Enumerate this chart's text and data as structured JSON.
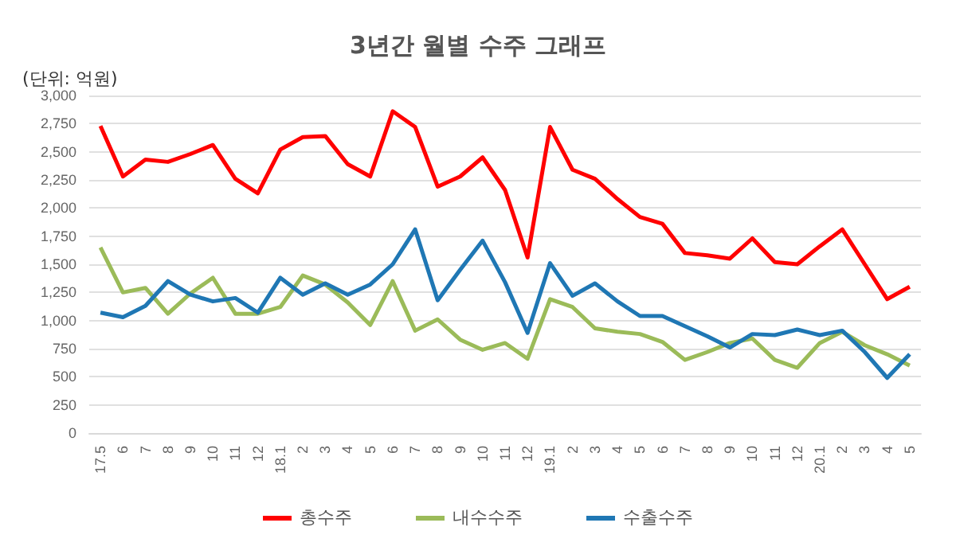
{
  "chart_data": {
    "type": "line",
    "title": "3년간 월별 수주 그래프",
    "ylabel": "(단위: 억원)",
    "categories": [
      "17.5",
      "6",
      "7",
      "8",
      "9",
      "10",
      "11",
      "12",
      "18.1",
      "2",
      "3",
      "4",
      "5",
      "6",
      "7",
      "8",
      "9",
      "10",
      "11",
      "12",
      "19.1",
      "2",
      "3",
      "4",
      "5",
      "6",
      "7",
      "8",
      "9",
      "10",
      "11",
      "12",
      "20.1",
      "2",
      "3",
      "4",
      "5"
    ],
    "series": [
      {
        "name": "총수주",
        "color": "#ff0000",
        "values": [
          2730,
          2280,
          2430,
          2410,
          2480,
          2560,
          2260,
          2130,
          2520,
          2630,
          2640,
          2390,
          2280,
          2860,
          2720,
          2190,
          2280,
          2450,
          2160,
          1560,
          2720,
          2340,
          2260,
          2080,
          1920,
          1860,
          1600,
          1580,
          1550,
          1730,
          1520,
          1500,
          1660,
          1810,
          1500,
          1190,
          1300
        ]
      },
      {
        "name": "내수수주",
        "color": "#9bbb59",
        "values": [
          1650,
          1250,
          1290,
          1060,
          1240,
          1380,
          1060,
          1060,
          1120,
          1400,
          1320,
          1160,
          960,
          1350,
          910,
          1010,
          830,
          740,
          800,
          660,
          1190,
          1120,
          930,
          900,
          880,
          810,
          650,
          720,
          800,
          840,
          650,
          580,
          800,
          900,
          780,
          700,
          600
        ]
      },
      {
        "name": "수출수주",
        "color": "#1f77b4",
        "values": [
          1070,
          1030,
          1130,
          1350,
          1230,
          1170,
          1200,
          1070,
          1380,
          1230,
          1330,
          1230,
          1320,
          1500,
          1810,
          1180,
          1450,
          1710,
          1340,
          890,
          1510,
          1220,
          1330,
          1170,
          1040,
          1040,
          950,
          860,
          760,
          880,
          870,
          920,
          870,
          910,
          720,
          490,
          700
        ]
      }
    ],
    "ylim": [
      0,
      3000
    ],
    "yticks": [
      0,
      250,
      500,
      750,
      {
        "value": 1000,
        "label": "1,000"
      },
      {
        "value": 1250,
        "label": "1,250"
      },
      {
        "value": 1500,
        "label": "1,500"
      },
      {
        "value": 1750,
        "label": "1,750"
      },
      {
        "value": 2000,
        "label": "2,000"
      },
      {
        "value": 2250,
        "label": "2,250"
      },
      {
        "value": 2500,
        "label": "2,500"
      },
      {
        "value": 2750,
        "label": "2,750"
      },
      {
        "value": 3000,
        "label": "3,000"
      }
    ],
    "grid": "y",
    "legend": "bottom",
    "marker": "none",
    "line_style": "solid"
  }
}
